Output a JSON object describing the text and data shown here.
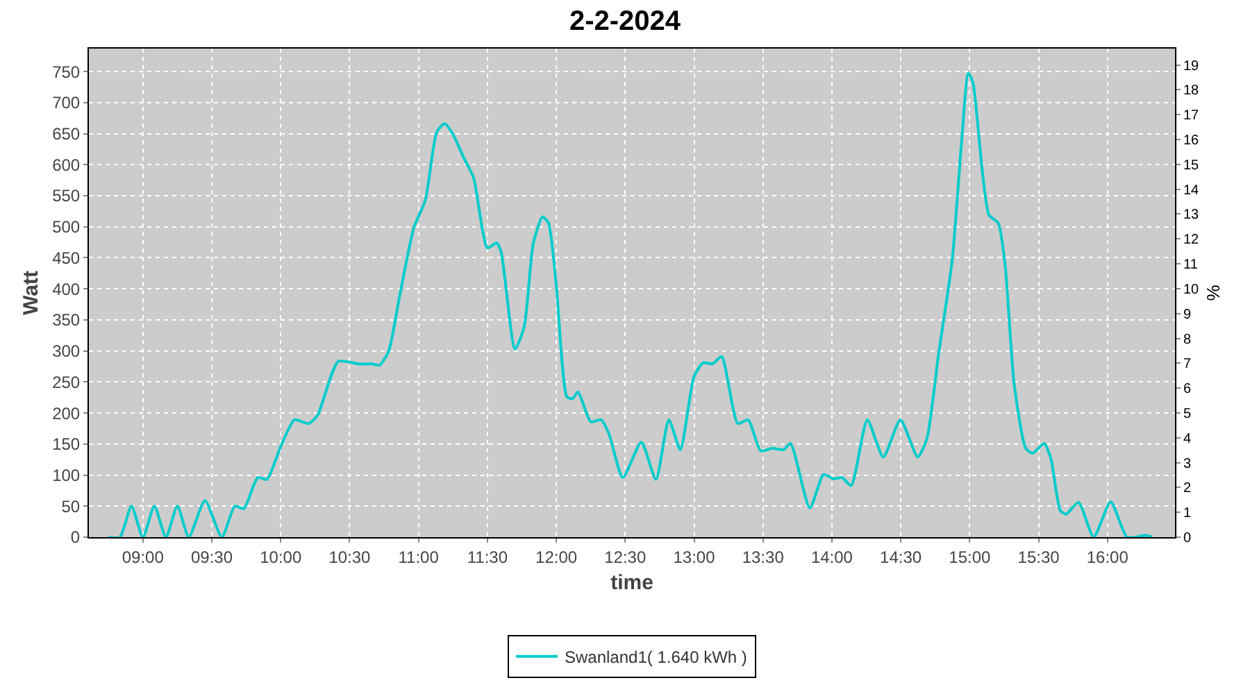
{
  "chart_data": {
    "type": "line",
    "title": "2-2-2024",
    "xlabel": "time",
    "ylabel": "Watt",
    "y2label": "%",
    "x": [
      8.75,
      8.833,
      8.917,
      9.0,
      9.083,
      9.167,
      9.25,
      9.333,
      9.45,
      9.573,
      9.667,
      9.733,
      9.833,
      9.9,
      10.0,
      10.1,
      10.2,
      10.267,
      10.417,
      10.567,
      10.667,
      10.717,
      10.783,
      10.867,
      10.967,
      11.05,
      11.133,
      11.19,
      11.25,
      11.333,
      11.4,
      11.5,
      11.567,
      11.6,
      11.7,
      11.767,
      11.833,
      11.9,
      11.943,
      12.0,
      12.077,
      12.117,
      12.157,
      12.25,
      12.327,
      12.383,
      12.483,
      12.617,
      12.723,
      12.817,
      12.9,
      13.0,
      13.067,
      13.133,
      13.2,
      13.317,
      13.393,
      13.483,
      13.567,
      13.65,
      13.7,
      13.84,
      13.94,
      14.013,
      14.073,
      14.14,
      14.257,
      14.373,
      14.497,
      14.623,
      14.69,
      14.773,
      14.873,
      14.94,
      14.99,
      15.023,
      15.09,
      15.14,
      15.207,
      15.257,
      15.323,
      15.407,
      15.457,
      15.54,
      15.59,
      15.657,
      15.7,
      15.79,
      15.9,
      16.023,
      16.14,
      16.207,
      16.273,
      16.323
    ],
    "series": [
      {
        "name": "Swanland1( 1.640 kWh )",
        "color": "#00cccc",
        "values": [
          0,
          0,
          50,
          0,
          50,
          0,
          50,
          0,
          59,
          0,
          50,
          46,
          96,
          93,
          146,
          189,
          183,
          196,
          283,
          279,
          279,
          277,
          299,
          393,
          499,
          543,
          653,
          666,
          649,
          609,
          579,
          466,
          474,
          459,
          303,
          339,
          473,
          516,
          506,
          406,
          226,
          223,
          234,
          186,
          189,
          166,
          96,
          153,
          93,
          189,
          141,
          259,
          281,
          279,
          291,
          183,
          189,
          139,
          143,
          141,
          151,
          47,
          101,
          94,
          96,
          83,
          189,
          129,
          189,
          129,
          159,
          293,
          446,
          633,
          747,
          733,
          593,
          519,
          506,
          439,
          246,
          143,
          135,
          151,
          126,
          43,
          37,
          56,
          0,
          57,
          0,
          0,
          3,
          0
        ]
      }
    ],
    "xlim": [
      8.608,
      16.49
    ],
    "xticks": [
      {
        "value": 9,
        "label": "09:00"
      },
      {
        "value": 9.5,
        "label": "09:30"
      },
      {
        "value": 10,
        "label": "10:00"
      },
      {
        "value": 10.5,
        "label": "10:30"
      },
      {
        "value": 11,
        "label": "11:00"
      },
      {
        "value": 11.5,
        "label": "11:30"
      },
      {
        "value": 12,
        "label": "12:00"
      },
      {
        "value": 12.5,
        "label": "12:30"
      },
      {
        "value": 13,
        "label": "13:00"
      },
      {
        "value": 13.5,
        "label": "13:30"
      },
      {
        "value": 14,
        "label": "14:00"
      },
      {
        "value": 14.5,
        "label": "14:30"
      },
      {
        "value": 15,
        "label": "15:00"
      },
      {
        "value": 15.5,
        "label": "15:30"
      },
      {
        "value": 16,
        "label": "16:00"
      }
    ],
    "ylim": [
      0,
      787
    ],
    "yticks": [
      0,
      50,
      100,
      150,
      200,
      250,
      300,
      350,
      400,
      450,
      500,
      550,
      600,
      650,
      700,
      750
    ],
    "y2lim": [
      0,
      19.66
    ],
    "y2ticks": [
      0,
      1,
      2,
      3,
      4,
      5,
      6,
      7,
      8,
      9,
      10,
      11,
      12,
      13,
      14,
      15,
      16,
      17,
      18,
      19
    ],
    "grid": true,
    "legend": "bottom"
  }
}
